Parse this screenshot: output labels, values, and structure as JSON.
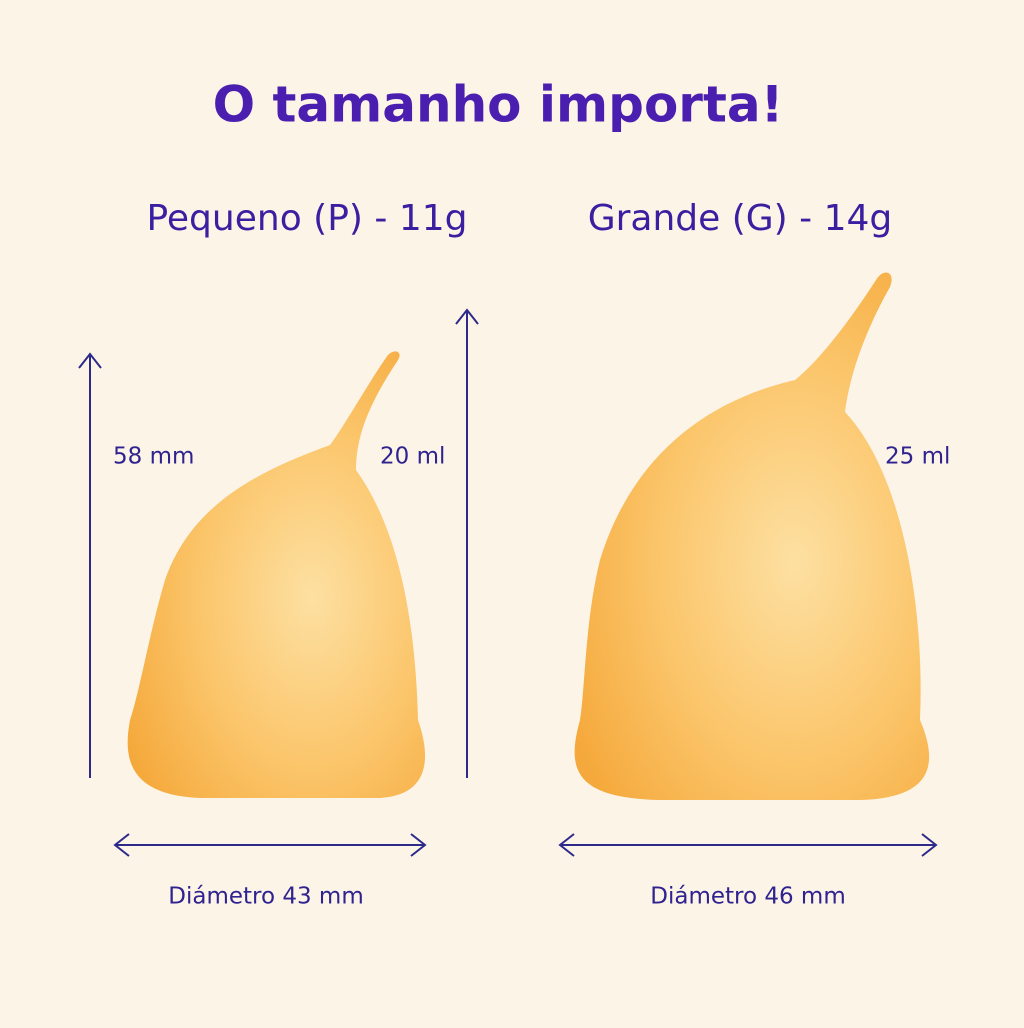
{
  "title": "O tamanho importa!",
  "sizes": [
    {
      "label": "Pequeno (P) - 11g",
      "height": "58 mm",
      "volume": "20 ml",
      "diameter": "Diámetro 43 mm"
    },
    {
      "label": "Grande (G) - 14g",
      "volume": "25 ml",
      "diameter": "Diámetro 46 mm"
    }
  ]
}
